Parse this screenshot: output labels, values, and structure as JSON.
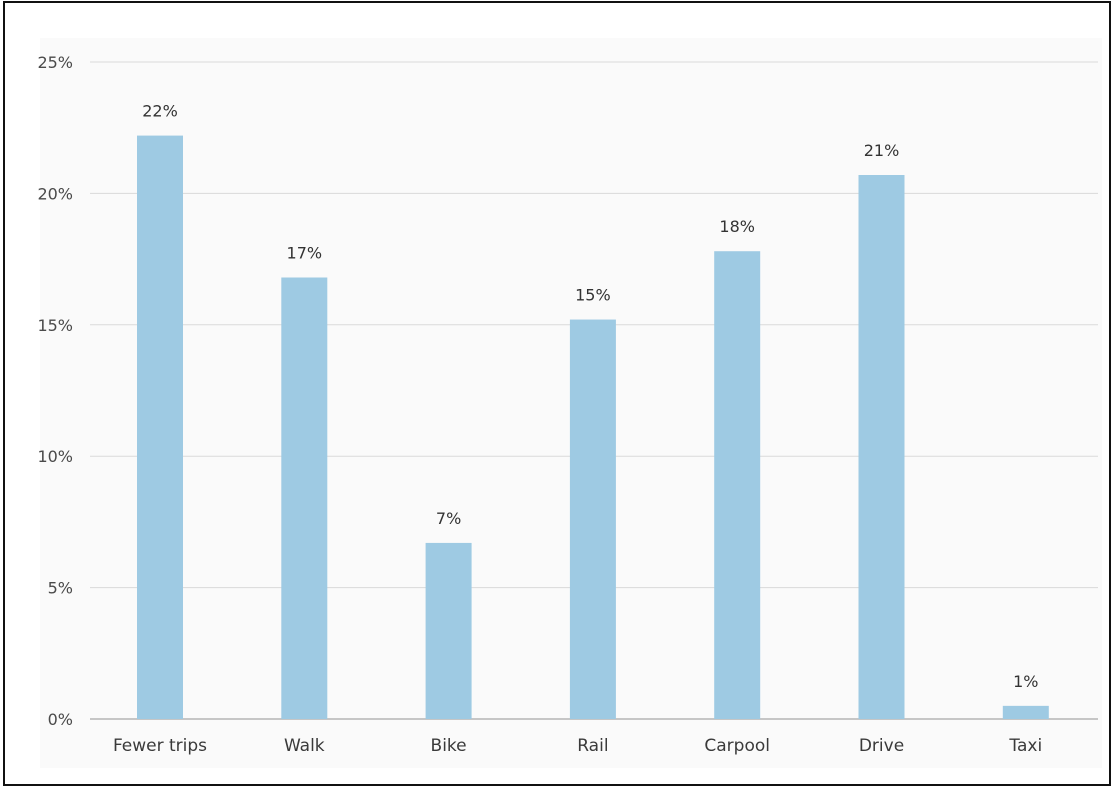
{
  "chart_data": {
    "type": "bar",
    "categories": [
      "Fewer trips",
      "Walk",
      "Bike",
      "Rail",
      "Carpool",
      "Drive",
      "Taxi"
    ],
    "values": [
      22.2,
      16.8,
      6.7,
      15.2,
      17.8,
      20.7,
      0.5
    ],
    "data_labels": [
      "22%",
      "17%",
      "7%",
      "15%",
      "18%",
      "21%",
      "1%"
    ],
    "y_ticks": [
      "0%",
      "5%",
      "10%",
      "15%",
      "20%",
      "25%"
    ],
    "y_tick_values": [
      0,
      5,
      10,
      15,
      20,
      25
    ],
    "ylim": [
      0,
      25
    ],
    "grid": true,
    "legend": "none",
    "bar_color": "#9ecae3",
    "grid_color": "#d9d9d9",
    "axis_color": "#b5b5b5"
  }
}
